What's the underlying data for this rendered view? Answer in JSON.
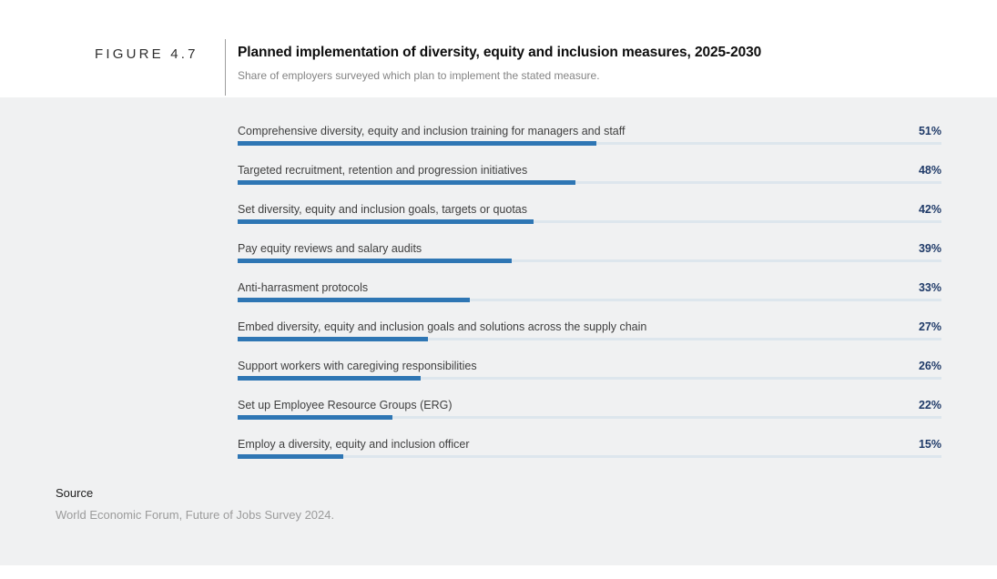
{
  "figure_label": "FIGURE 4.7",
  "header": {
    "title": "Planned implementation of diversity, equity and inclusion measures, 2025-2030",
    "subtitle": "Share of employers surveyed which plan to implement the stated measure."
  },
  "chart_data": {
    "type": "bar",
    "orientation": "horizontal",
    "title": "Planned implementation of diversity, equity and inclusion measures, 2025-2030",
    "subtitle": "Share of employers surveyed which plan to implement the stated measure.",
    "unit": "%",
    "xlim": [
      0,
      100
    ],
    "grid": false,
    "legend": "none",
    "categories": [
      "Comprehensive diversity, equity and inclusion training for managers and staff",
      "Targeted recruitment, retention and progression initiatives",
      "Set diversity, equity and inclusion goals, targets or quotas",
      "Pay equity reviews and salary audits",
      "Anti-harrasment protocols",
      "Embed diversity, equity and inclusion goals and solutions across the supply chain",
      "Support workers with caregiving responsibilities",
      "Set up Employee Resource Groups (ERG)",
      "Employ a diversity, equity and inclusion officer"
    ],
    "values": [
      51,
      48,
      42,
      39,
      33,
      27,
      26,
      22,
      15
    ],
    "colors": {
      "bar_fill": "#2e76b4",
      "bar_track": "#dde6ed",
      "value_text": "#1f3a68",
      "panel_background": "#f0f1f2"
    }
  },
  "footer": {
    "source_label": "Source",
    "source_text": "World Economic Forum, Future of Jobs Survey 2024."
  }
}
